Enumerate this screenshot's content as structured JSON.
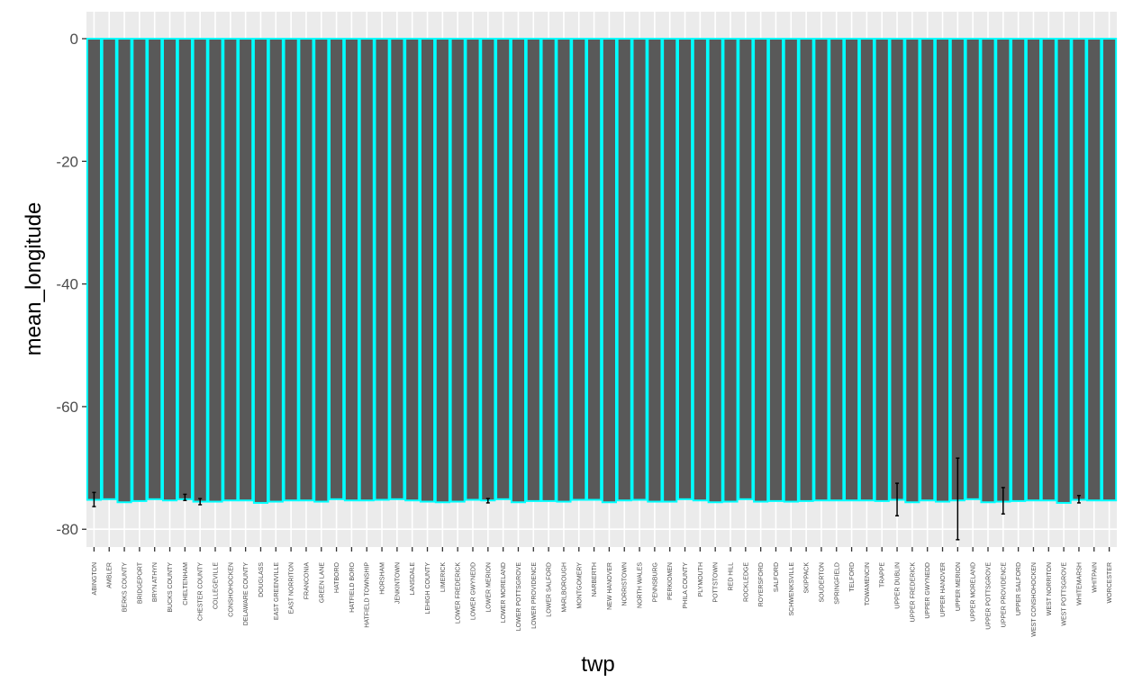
{
  "chart_data": {
    "type": "bar",
    "xlabel": "twp",
    "ylabel": "mean_longitude",
    "ylim": [
      -82.9,
      4.4
    ],
    "yticks": [
      0,
      -20,
      -40,
      -60,
      -80
    ],
    "grid": true,
    "colors": {
      "panel": "#ebebeb",
      "grid_major": "#ffffff",
      "bar_fill": "#595959",
      "bar_outline": "#00ffff",
      "error_bar": "#000000",
      "tick_text": "#4d4d4d"
    },
    "categories": [
      "ABINGTON",
      "AMBLER",
      "BERKS COUNTY",
      "BRIDGEPORT",
      "BRYN ATHYN",
      "BUCKS COUNTY",
      "CHELTENHAM",
      "CHESTER COUNTY",
      "COLLEGEVILLE",
      "CONSHOHOCKEN",
      "DELAWARE COUNTY",
      "DOUGLASS",
      "EAST GREENVILLE",
      "EAST NORRITON",
      "FRANCONIA",
      "GREEN LANE",
      "HATBORO",
      "HATFIELD BORO",
      "HATFIELD TOWNSHIP",
      "HORSHAM",
      "JENKINTOWN",
      "LANSDALE",
      "LEHIGH COUNTY",
      "LIMERICK",
      "LOWER FREDERICK",
      "LOWER GWYNEDD",
      "LOWER MERION",
      "LOWER MORELAND",
      "LOWER POTTSGROVE",
      "LOWER PROVIDENCE",
      "LOWER SALFORD",
      "MARLBOROUGH",
      "MONTGOMERY",
      "NARBERTH",
      "NEW HANOVER",
      "NORRISTOWN",
      "NORTH WALES",
      "PENNSBURG",
      "PERKIOMEN",
      "PHILA COUNTY",
      "PLYMOUTH",
      "POTTSTOWN",
      "RED HILL",
      "ROCKLEDGE",
      "ROYERSFORD",
      "SALFORD",
      "SCHWENKSVILLE",
      "SKIPPACK",
      "SOUDERTON",
      "SPRINGFIELD",
      "TELFORD",
      "TOWAMENCIN",
      "TRAPPE",
      "UPPER DUBLIN",
      "UPPER FREDERICK",
      "UPPER GWYNEDD",
      "UPPER HANOVER",
      "UPPER MERION",
      "UPPER MORELAND",
      "UPPER POTTSGROVE",
      "UPPER PROVIDENCE",
      "UPPER SALFORD",
      "WEST CONSHOHOCKEN",
      "WEST NORRITON",
      "WEST POTTSGROVE",
      "WHITEMARSH",
      "WHITPAIN",
      "WORCESTER"
    ],
    "values": [
      -75.2,
      -75.1,
      -75.6,
      -75.4,
      -75.1,
      -75.3,
      -75.1,
      -75.5,
      -75.5,
      -75.3,
      -75.3,
      -75.7,
      -75.5,
      -75.3,
      -75.3,
      -75.5,
      -75.1,
      -75.3,
      -75.3,
      -75.2,
      -75.1,
      -75.3,
      -75.5,
      -75.6,
      -75.5,
      -75.2,
      -75.3,
      -75.1,
      -75.6,
      -75.4,
      -75.4,
      -75.5,
      -75.2,
      -75.2,
      -75.6,
      -75.3,
      -75.2,
      -75.5,
      -75.5,
      -75.1,
      -75.3,
      -75.6,
      -75.5,
      -75.1,
      -75.5,
      -75.4,
      -75.5,
      -75.4,
      -75.3,
      -75.3,
      -75.3,
      -75.3,
      -75.4,
      -75.2,
      -75.6,
      -75.3,
      -75.5,
      -75.3,
      -75.1,
      -75.6,
      -75.5,
      -75.4,
      -75.3,
      -75.3,
      -75.7,
      -75.2,
      -75.3,
      -75.3
    ],
    "error_low": [
      -76.3,
      null,
      null,
      null,
      null,
      null,
      -75.3,
      -76.0,
      null,
      null,
      null,
      null,
      null,
      null,
      null,
      null,
      null,
      null,
      null,
      null,
      null,
      null,
      null,
      null,
      null,
      null,
      -75.7,
      null,
      null,
      null,
      null,
      null,
      null,
      null,
      null,
      null,
      null,
      null,
      null,
      null,
      null,
      null,
      null,
      null,
      null,
      null,
      null,
      null,
      null,
      null,
      null,
      null,
      null,
      -77.8,
      null,
      null,
      null,
      -81.7,
      null,
      null,
      -77.5,
      null,
      null,
      null,
      null,
      -75.7,
      null,
      null
    ],
    "error_high": [
      -74.0,
      null,
      null,
      null,
      null,
      null,
      -74.3,
      -75.0,
      null,
      null,
      null,
      null,
      null,
      null,
      null,
      null,
      null,
      null,
      null,
      null,
      null,
      null,
      null,
      null,
      null,
      null,
      -75.0,
      null,
      null,
      null,
      null,
      null,
      null,
      null,
      null,
      null,
      null,
      null,
      null,
      null,
      null,
      null,
      null,
      null,
      null,
      null,
      null,
      null,
      null,
      null,
      null,
      null,
      null,
      -72.5,
      null,
      null,
      null,
      -68.4,
      null,
      null,
      -73.2,
      null,
      null,
      null,
      null,
      -74.5,
      null,
      null
    ]
  }
}
